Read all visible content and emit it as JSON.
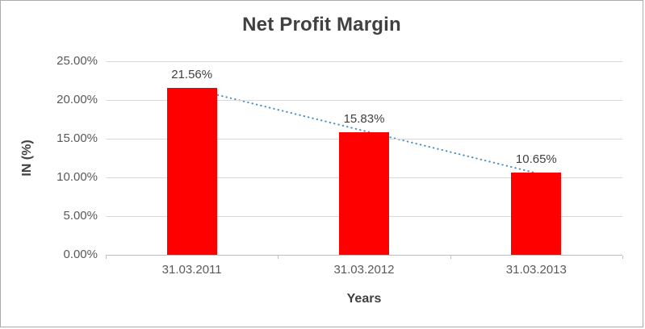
{
  "chart_data": {
    "type": "bar",
    "title": "Net Profit Margin",
    "xlabel": "Years",
    "ylabel": "IN (%)",
    "categories": [
      "31.03.2011",
      "31.03.2012",
      "31.03.2013"
    ],
    "values": [
      21.56,
      15.83,
      10.65
    ],
    "data_labels": [
      "21.56%",
      "15.83%",
      "10.65%"
    ],
    "ylim": [
      0,
      25
    ],
    "ytick_step": 5,
    "ytick_labels": [
      "0.00%",
      "5.00%",
      "10.00%",
      "15.00%",
      "20.00%",
      "25.00%"
    ],
    "grid": true,
    "legend": "none",
    "bar_color": "#ff0000",
    "gridline_color": "#d9d9d9",
    "axis_line_color": "#bfbfbf",
    "text_color": "#595959",
    "trendline": {
      "type": "linear",
      "style": "dotted",
      "color": "#4a90c4"
    }
  }
}
